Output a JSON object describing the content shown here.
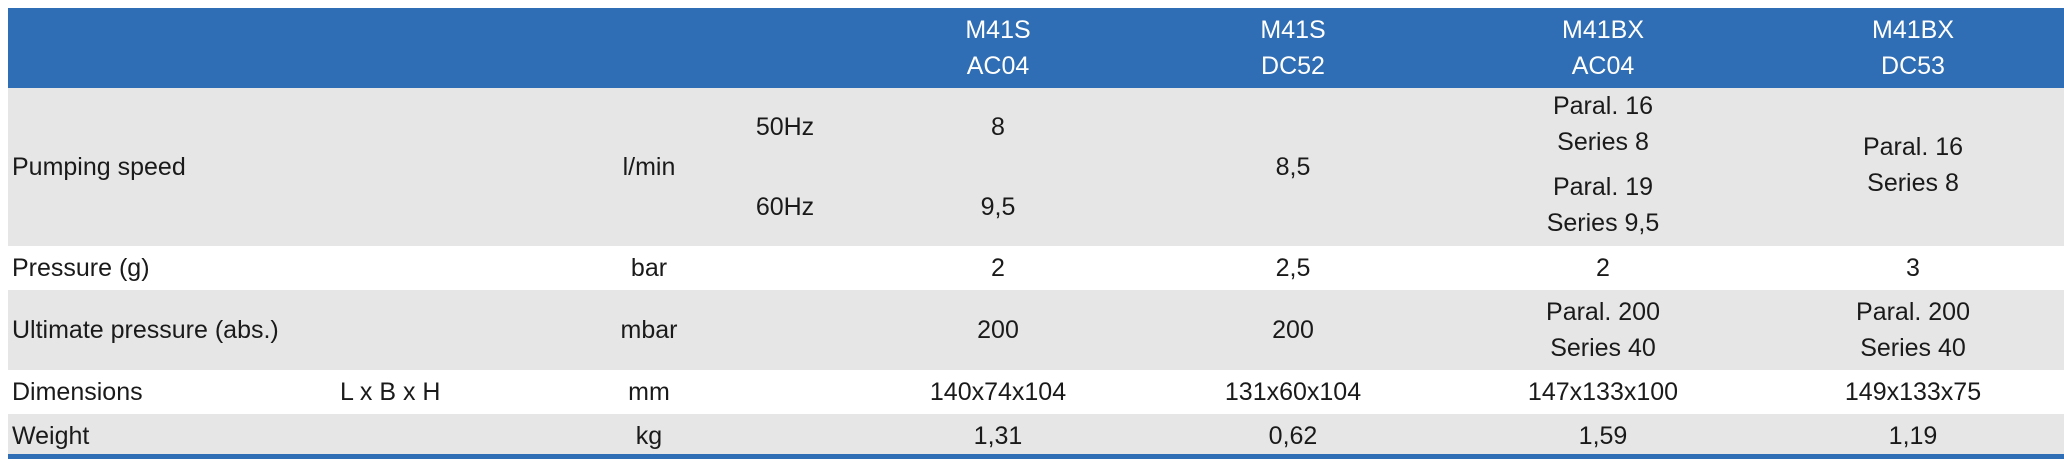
{
  "header": {
    "models": [
      {
        "line1": "M41S",
        "line2": "AC04"
      },
      {
        "line1": "M41S",
        "line2": "DC52"
      },
      {
        "line1": "M41BX",
        "line2": "AC04"
      },
      {
        "line1": "M41BX",
        "line2": "DC53"
      }
    ]
  },
  "rows": {
    "pumping_speed": {
      "label": "Pumping speed",
      "unit": "l/min",
      "freq_50": "50Hz",
      "freq_60": "60Hz",
      "m41s_ac04_50": "8",
      "m41s_ac04_60": "9,5",
      "m41s_dc52": "8,5",
      "m41bx_ac04_50_l1": "Paral. 16",
      "m41bx_ac04_50_l2": "Series 8",
      "m41bx_ac04_60_l1": "Paral. 19",
      "m41bx_ac04_60_l2": "Series 9,5",
      "m41bx_dc53_l1": "Paral. 16",
      "m41bx_dc53_l2": "Series 8"
    },
    "pressure": {
      "label": "Pressure (g)",
      "unit": "bar",
      "values": [
        "2",
        "2,5",
        "2",
        "3"
      ]
    },
    "ultimate_pressure": {
      "label": "Ultimate pressure (abs.)",
      "unit": "mbar",
      "m41s_ac04": "200",
      "m41s_dc52": "200",
      "m41bx_ac04_l1": "Paral. 200",
      "m41bx_ac04_l2": "Series 40",
      "m41bx_dc53_l1": "Paral. 200",
      "m41bx_dc53_l2": "Series 40"
    },
    "dimensions": {
      "label": "Dimensions",
      "sub": "L x B x H",
      "unit": "mm",
      "values": [
        "140x74x104",
        "131x60x104",
        "147x133x100",
        "149x133x75"
      ]
    },
    "weight": {
      "label": "Weight",
      "unit": "kg",
      "values": [
        "1,31",
        "0,62",
        "1,59",
        "1,19"
      ]
    }
  },
  "colors": {
    "header_bg": "#2f6db4",
    "shaded_row": "#e6e6e6",
    "rule": "#2f6db4"
  }
}
